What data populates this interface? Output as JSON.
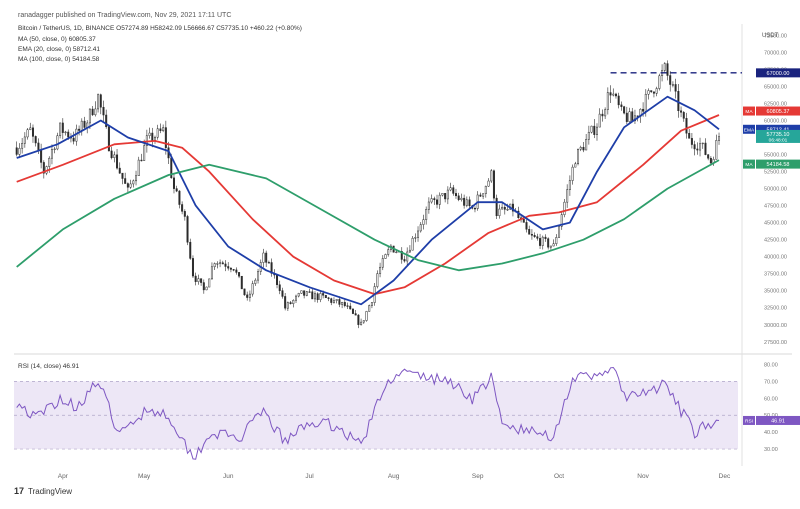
{
  "header": {
    "published": "ranadagger published on TradingView.com, Nov 29, 2021 17:11 UTC",
    "symbol_line": "Bitcoin / TetherUS, 1D, BINANCE  O57274.89  H58242.09  L56666.67  C57735.10  +460.22 (+0.80%)",
    "ma50": "MA (50, close, 0)  60805.37",
    "ema20": "EMA (20, close, 0)  58712.41",
    "ma100": "MA (100, close, 0)  54184.58",
    "rsi_label": "RSI (14, close)  46.91",
    "currency": "USDT",
    "logo": "TradingView"
  },
  "colors": {
    "up": "#26a69a",
    "down": "#ef5350",
    "candle": "#2b2b2b",
    "ema20": "#1e3ea8",
    "ma50": "#e53935",
    "ma100": "#2e9e6b",
    "rsi": "#7e57c2",
    "rsi_band": "#ede7f6",
    "level": "#1a237e"
  },
  "chart_data": [
    {
      "type": "candlestick",
      "title": "Bitcoin / TetherUS, 1D, BINANCE",
      "y_scale": "linear",
      "ylim": [
        26000,
        73000
      ],
      "yticks": [
        27500,
        30000,
        32500,
        35000,
        37500,
        40000,
        42500,
        45000,
        47500,
        50000,
        52500,
        55000,
        57500,
        60000,
        62500,
        65000,
        67500,
        70000,
        72500
      ],
      "x_start": "2021-03-14",
      "x_end": "2021-12-06",
      "x_ticks": [
        {
          "date": "2021-04-01",
          "label": "Apr"
        },
        {
          "date": "2021-05-01",
          "label": "May"
        },
        {
          "date": "2021-06-01",
          "label": "Jun"
        },
        {
          "date": "2021-07-01",
          "label": "Jul"
        },
        {
          "date": "2021-08-01",
          "label": "Aug"
        },
        {
          "date": "2021-09-01",
          "label": "Sep"
        },
        {
          "date": "2021-10-01",
          "label": "Oct"
        },
        {
          "date": "2021-11-01",
          "label": "Nov"
        },
        {
          "date": "2021-12-01",
          "label": "Dec"
        }
      ],
      "price_anchors": [
        [
          "2021-03-15",
          56000
        ],
        [
          "2021-03-20",
          58500
        ],
        [
          "2021-03-25",
          52500
        ],
        [
          "2021-03-31",
          58800
        ],
        [
          "2021-04-05",
          57500
        ],
        [
          "2021-04-10",
          60000
        ],
        [
          "2021-04-14",
          63500
        ],
        [
          "2021-04-18",
          56500
        ],
        [
          "2021-04-25",
          49500
        ],
        [
          "2021-05-02",
          57000
        ],
        [
          "2021-05-08",
          58500
        ],
        [
          "2021-05-12",
          50000
        ],
        [
          "2021-05-16",
          45500
        ],
        [
          "2021-05-19",
          37500
        ],
        [
          "2021-05-23",
          35000
        ],
        [
          "2021-05-27",
          39500
        ],
        [
          "2021-06-03",
          38500
        ],
        [
          "2021-06-08",
          33500
        ],
        [
          "2021-06-14",
          40000
        ],
        [
          "2021-06-20",
          35500
        ],
        [
          "2021-06-22",
          32500
        ],
        [
          "2021-06-28",
          34500
        ],
        [
          "2021-07-06",
          34000
        ],
        [
          "2021-07-14",
          32800
        ],
        [
          "2021-07-20",
          30000
        ],
        [
          "2021-07-24",
          33800
        ],
        [
          "2021-07-26",
          37500
        ],
        [
          "2021-07-31",
          41500
        ],
        [
          "2021-08-05",
          40000
        ],
        [
          "2021-08-14",
          47500
        ],
        [
          "2021-08-22",
          49500
        ],
        [
          "2021-08-30",
          47000
        ],
        [
          "2021-09-06",
          52000
        ],
        [
          "2021-09-08",
          46500
        ],
        [
          "2021-09-14",
          47000
        ],
        [
          "2021-09-20",
          43000
        ],
        [
          "2021-09-29",
          41500
        ],
        [
          "2021-10-03",
          48000
        ],
        [
          "2021-10-07",
          54500
        ],
        [
          "2021-10-15",
          59500
        ],
        [
          "2021-10-20",
          64500
        ],
        [
          "2021-10-24",
          61000
        ],
        [
          "2021-10-28",
          60000
        ],
        [
          "2021-11-02",
          63000
        ],
        [
          "2021-11-09",
          67500
        ],
        [
          "2021-11-12",
          64500
        ],
        [
          "2021-11-18",
          57000
        ],
        [
          "2021-11-22",
          56500
        ],
        [
          "2021-11-26",
          54000
        ],
        [
          "2021-11-29",
          57735
        ]
      ],
      "levels": [
        {
          "value": 67000,
          "label": "67000.00"
        }
      ],
      "indicators": [
        {
          "name": "MA 50",
          "axis_label": "MA",
          "last": "60805.37",
          "series": [
            [
              "2021-03-15",
              51000
            ],
            [
              "2021-04-01",
              53500
            ],
            [
              "2021-04-20",
              56500
            ],
            [
              "2021-05-05",
              57000
            ],
            [
              "2021-05-15",
              56000
            ],
            [
              "2021-05-25",
              52500
            ],
            [
              "2021-06-10",
              45500
            ],
            [
              "2021-06-25",
              40000
            ],
            [
              "2021-07-10",
              36500
            ],
            [
              "2021-07-25",
              34500
            ],
            [
              "2021-08-05",
              35500
            ],
            [
              "2021-08-20",
              39000
            ],
            [
              "2021-09-05",
              43500
            ],
            [
              "2021-09-20",
              46000
            ],
            [
              "2021-10-01",
              46500
            ],
            [
              "2021-10-15",
              48000
            ],
            [
              "2021-11-01",
              53500
            ],
            [
              "2021-11-15",
              58500
            ],
            [
              "2021-11-29",
              60805
            ]
          ]
        },
        {
          "name": "EMA 20",
          "axis_label": "EMA",
          "last": "58712.41",
          "series": [
            [
              "2021-03-15",
              54500
            ],
            [
              "2021-03-30",
              56500
            ],
            [
              "2021-04-15",
              60000
            ],
            [
              "2021-04-25",
              57500
            ],
            [
              "2021-05-10",
              55500
            ],
            [
              "2021-05-20",
              47500
            ],
            [
              "2021-06-01",
              41500
            ],
            [
              "2021-06-15",
              38000
            ],
            [
              "2021-07-01",
              35500
            ],
            [
              "2021-07-20",
              33000
            ],
            [
              "2021-08-01",
              36500
            ],
            [
              "2021-08-15",
              42500
            ],
            [
              "2021-09-01",
              48000
            ],
            [
              "2021-09-10",
              48000
            ],
            [
              "2021-09-25",
              44000
            ],
            [
              "2021-10-05",
              45000
            ],
            [
              "2021-10-15",
              52500
            ],
            [
              "2021-10-25",
              59000
            ],
            [
              "2021-11-10",
              63500
            ],
            [
              "2021-11-20",
              61500
            ],
            [
              "2021-11-29",
              58712
            ]
          ]
        },
        {
          "name": "MA 100",
          "axis_label": "MA",
          "last": "54184.58",
          "series": [
            [
              "2021-03-15",
              38500
            ],
            [
              "2021-04-01",
              44000
            ],
            [
              "2021-04-20",
              48500
            ],
            [
              "2021-05-10",
              52000
            ],
            [
              "2021-05-25",
              53500
            ],
            [
              "2021-06-15",
              51500
            ],
            [
              "2021-07-05",
              47000
            ],
            [
              "2021-07-25",
              42500
            ],
            [
              "2021-08-10",
              39500
            ],
            [
              "2021-08-25",
              38000
            ],
            [
              "2021-09-10",
              39000
            ],
            [
              "2021-09-25",
              40500
            ],
            [
              "2021-10-10",
              42500
            ],
            [
              "2021-10-25",
              45500
            ],
            [
              "2021-11-10",
              50000
            ],
            [
              "2021-11-29",
              54184
            ]
          ]
        }
      ],
      "last_price": "57735.10",
      "last_countdown": "06:48:01"
    },
    {
      "type": "line",
      "title": "RSI (14, close)",
      "ylim": [
        20,
        85
      ],
      "yticks": [
        30,
        40,
        50,
        60,
        70,
        80
      ],
      "band": [
        30,
        70
      ],
      "last": "46.91",
      "axis_label": "RSI",
      "series": [
        [
          "2021-03-15",
          58
        ],
        [
          "2021-03-22",
          48
        ],
        [
          "2021-03-31",
          60
        ],
        [
          "2021-04-06",
          55
        ],
        [
          "2021-04-14",
          70
        ],
        [
          "2021-04-22",
          38
        ],
        [
          "2021-05-02",
          54
        ],
        [
          "2021-05-10",
          50
        ],
        [
          "2021-05-19",
          25
        ],
        [
          "2021-05-26",
          40
        ],
        [
          "2021-06-05",
          36
        ],
        [
          "2021-06-14",
          52
        ],
        [
          "2021-06-22",
          34
        ],
        [
          "2021-07-01",
          46
        ],
        [
          "2021-07-10",
          44
        ],
        [
          "2021-07-20",
          33
        ],
        [
          "2021-07-28",
          64
        ],
        [
          "2021-08-02",
          76
        ],
        [
          "2021-08-14",
          72
        ],
        [
          "2021-08-22",
          70
        ],
        [
          "2021-08-30",
          60
        ],
        [
          "2021-09-06",
          72
        ],
        [
          "2021-09-10",
          44
        ],
        [
          "2021-09-21",
          40
        ],
        [
          "2021-09-29",
          38
        ],
        [
          "2021-10-06",
          72
        ],
        [
          "2021-10-14",
          72
        ],
        [
          "2021-10-20",
          79
        ],
        [
          "2021-10-26",
          60
        ],
        [
          "2021-11-02",
          63
        ],
        [
          "2021-11-09",
          68
        ],
        [
          "2021-11-16",
          50
        ],
        [
          "2021-11-20",
          40
        ],
        [
          "2021-11-24",
          45
        ],
        [
          "2021-11-26",
          39
        ],
        [
          "2021-11-29",
          46.91
        ]
      ]
    }
  ]
}
